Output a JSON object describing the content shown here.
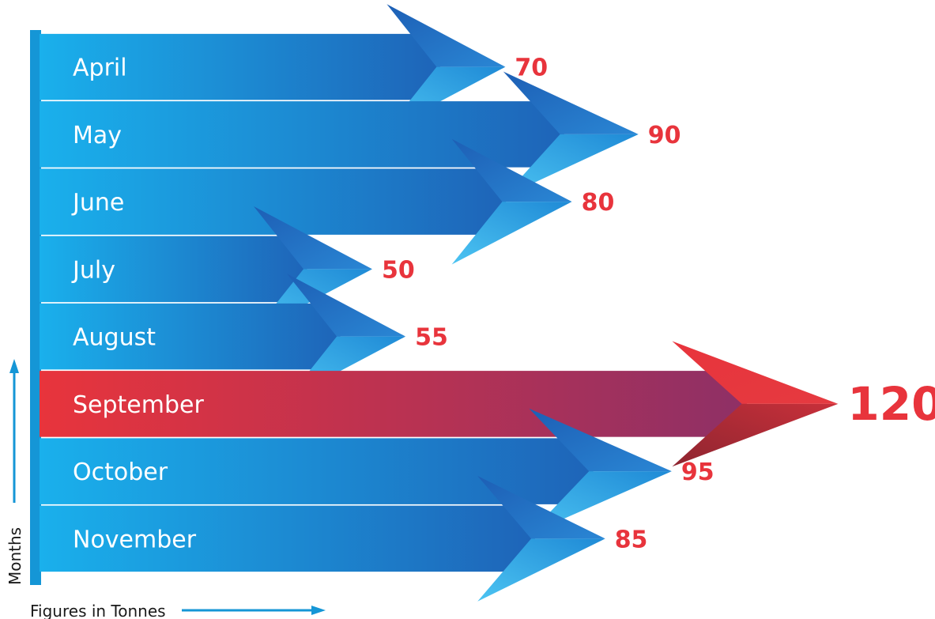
{
  "chart_data": {
    "type": "bar",
    "orientation": "horizontal",
    "categories": [
      "April",
      "May",
      "June",
      "July",
      "August",
      "September",
      "October",
      "November"
    ],
    "values": [
      70,
      90,
      80,
      50,
      55,
      120,
      95,
      85
    ],
    "highlight": "September",
    "xlabel": "Figures in Tonnes",
    "ylabel": "Months",
    "xlim": [
      0,
      120
    ],
    "grid": false,
    "legend": "none",
    "colors": {
      "bar": "#1596d6",
      "bar_light": "#1ab0ec",
      "bar_dark": "#1e64b8",
      "highlight": "#e8343c",
      "highlight_dark": "#9a2f63",
      "value_text": "#e8343c",
      "axis": "#1596d6"
    }
  }
}
